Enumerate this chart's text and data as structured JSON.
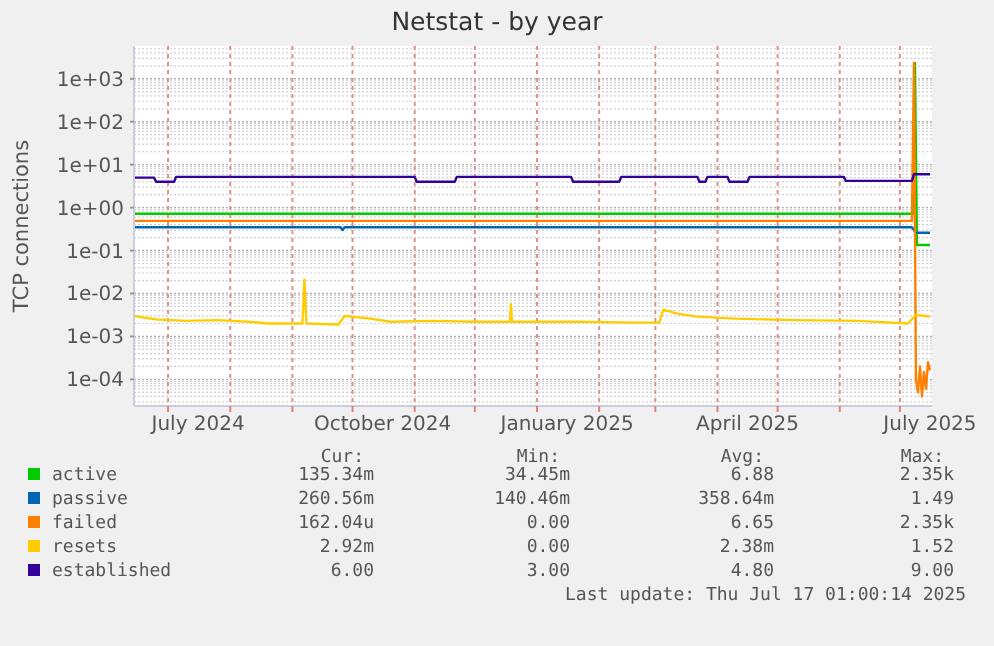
{
  "chart_data": {
    "type": "line",
    "title": "Netstat - by year",
    "ylabel": "TCP connections",
    "log": "y",
    "grid": true,
    "legend": "bottom",
    "xlim": [
      "2024-06-14",
      "2025-07-17"
    ],
    "ylim": [
      2.4e-05,
      5800
    ],
    "yticks": [
      {
        "value": 0.0001,
        "label": "1e-04"
      },
      {
        "value": 0.001,
        "label": "1e-03"
      },
      {
        "value": 0.01,
        "label": "1e-02"
      },
      {
        "value": 0.1,
        "label": "1e-01"
      },
      {
        "value": 1,
        "label": "1e+00"
      },
      {
        "value": 10,
        "label": "1e+01"
      },
      {
        "value": 100,
        "label": "1e+02"
      },
      {
        "value": 1000,
        "label": "1e+03"
      }
    ],
    "xticks": [
      {
        "value": "2024-07-01",
        "label": null
      },
      {
        "value": "2024-07-16",
        "label": "July 2024"
      },
      {
        "value": "2024-08-01",
        "label": null
      },
      {
        "value": "2024-09-01",
        "label": null
      },
      {
        "value": "2024-10-01",
        "label": null
      },
      {
        "value": "2024-10-16",
        "label": "October 2024"
      },
      {
        "value": "2024-11-01",
        "label": null
      },
      {
        "value": "2024-12-01",
        "label": null
      },
      {
        "value": "2025-01-01",
        "label": null
      },
      {
        "value": "2025-01-16",
        "label": "January 2025"
      },
      {
        "value": "2025-02-01",
        "label": null
      },
      {
        "value": "2025-03-01",
        "label": null
      },
      {
        "value": "2025-04-01",
        "label": null
      },
      {
        "value": "2025-04-16",
        "label": "April 2025"
      },
      {
        "value": "2025-05-01",
        "label": null
      },
      {
        "value": "2025-06-01",
        "label": null
      },
      {
        "value": "2025-07-01",
        "label": null
      },
      {
        "value": "2025-07-16",
        "label": "July 2025"
      }
    ],
    "series": [
      {
        "name": "active",
        "color": "#00cc00",
        "x": [
          "2024-06-14",
          "2025-07-07T12:00",
          "2025-07-08T12:00",
          "2025-07-09T12:00",
          "2025-07-16"
        ],
        "values": [
          0.72,
          0.72,
          2350,
          0.135,
          0.135
        ]
      },
      {
        "name": "passive",
        "color": "#0066b3",
        "x": [
          "2024-06-14",
          "2024-09-25",
          "2024-09-26",
          "2024-09-27",
          "2025-07-07",
          "2025-07-09",
          "2025-07-16"
        ],
        "values": [
          0.35,
          0.35,
          0.3,
          0.35,
          0.35,
          0.26,
          0.26
        ]
      },
      {
        "name": "failed",
        "color": "#ff8000",
        "x": [
          "2024-06-14",
          "2025-07-07",
          "2025-07-08",
          "2025-07-09",
          "2025-07-10",
          "2025-07-11",
          "2025-07-12",
          "2025-07-13",
          "2025-07-14",
          "2025-07-15",
          "2025-07-16"
        ],
        "values": [
          0.49,
          0.49,
          2350,
          0.0001,
          5e-05,
          0.0002,
          4e-05,
          0.00015,
          6e-05,
          0.00025,
          0.000162
        ]
      },
      {
        "name": "resets",
        "color": "#ffcc00",
        "x": [
          "2024-06-14",
          "2024-06-25",
          "2024-07-10",
          "2024-07-25",
          "2024-08-10",
          "2024-08-20",
          "2024-09-06",
          "2024-09-07",
          "2024-09-08",
          "2024-09-24",
          "2024-09-27",
          "2024-10-10",
          "2024-10-20",
          "2024-11-10",
          "2024-12-01",
          "2024-12-18T12:00",
          "2024-12-19",
          "2024-12-19T12:00",
          "2025-01-20",
          "2025-02-20",
          "2025-03-03",
          "2025-03-05",
          "2025-03-12",
          "2025-03-22",
          "2025-04-10",
          "2025-05-10",
          "2025-06-10",
          "2025-07-05",
          "2025-07-09",
          "2025-07-16"
        ],
        "values": [
          0.003,
          0.0025,
          0.0023,
          0.0024,
          0.0022,
          0.002,
          0.002,
          0.021,
          0.002,
          0.0019,
          0.003,
          0.0026,
          0.0022,
          0.0023,
          0.0022,
          0.0022,
          0.0056,
          0.0022,
          0.0022,
          0.0021,
          0.0021,
          0.0042,
          0.0034,
          0.0029,
          0.0026,
          0.0024,
          0.0023,
          0.002,
          0.0032,
          0.0029
        ]
      },
      {
        "name": "established",
        "color": "#330099",
        "x": [
          "2024-06-14",
          "2024-06-24",
          "2024-06-25",
          "2024-07-04",
          "2024-07-05",
          "2024-11-01",
          "2024-11-02",
          "2024-11-21",
          "2024-11-22",
          "2025-01-18",
          "2025-01-19",
          "2025-02-11",
          "2025-02-12",
          "2025-03-22",
          "2025-03-23",
          "2025-03-26",
          "2025-03-27",
          "2025-04-06",
          "2025-04-07",
          "2025-04-16",
          "2025-04-17",
          "2025-06-03",
          "2025-06-04",
          "2025-07-07",
          "2025-07-08",
          "2025-07-16"
        ],
        "values": [
          5,
          5,
          4,
          4,
          5.2,
          5.2,
          4,
          4,
          5.2,
          5.2,
          4,
          4,
          5.2,
          5.2,
          4,
          4,
          5.2,
          5.2,
          4,
          4,
          5.2,
          5.2,
          4.2,
          4.2,
          6,
          6
        ]
      }
    ],
    "annotations": [
      "Cur:",
      "Min:",
      "Avg:",
      "Max:",
      "135.34m",
      "34.45m",
      "6.88",
      "2.35k",
      "260.56m",
      "140.46m",
      "358.64m",
      "1.49",
      "162.04u",
      "0.00",
      "6.65",
      "2.35k",
      "2.92m",
      "0.00",
      "2.38m",
      "1.52",
      "6.00",
      "3.00",
      "4.80",
      "9.00",
      "Last update: Thu Jul 17 01:00:14 2025"
    ]
  }
}
